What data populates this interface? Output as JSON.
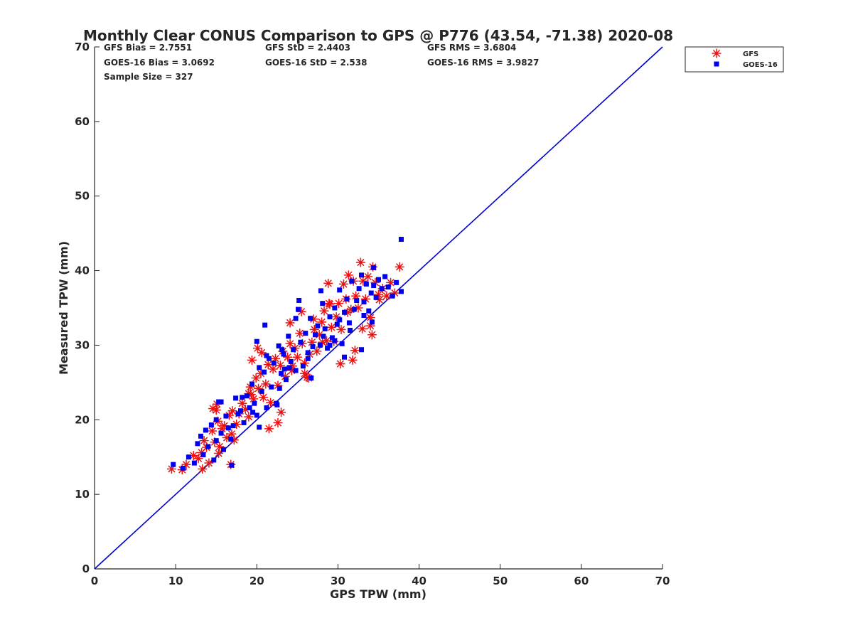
{
  "chart_data": {
    "type": "scatter",
    "title": "Monthly Clear CONUS Comparison to GPS @ P776 (43.54, -71.38) 2020-08",
    "xlabel": "GPS TPW (mm)",
    "ylabel": "Measured TPW (mm)",
    "xlim": [
      0,
      70
    ],
    "ylim": [
      0,
      70
    ],
    "xticks": [
      0,
      10,
      20,
      30,
      40,
      50,
      60,
      70
    ],
    "yticks": [
      0,
      10,
      20,
      30,
      40,
      50,
      60,
      70
    ],
    "grid": false,
    "legend_position": "outside top-right",
    "reference_line": {
      "name": "1:1 line",
      "x": [
        0,
        70
      ],
      "y": [
        0,
        70
      ],
      "color": "#0000cc"
    },
    "stats": [
      [
        "GFS Bias = 2.7551",
        "GFS StD = 2.4403",
        "GFS RMS = 3.6804"
      ],
      [
        "GOES-16 Bias = 3.0692",
        "GOES-16 StD = 2.538",
        "GOES-16 RMS = 3.9827"
      ],
      [
        "Sample Size = 327",
        "",
        ""
      ]
    ],
    "series": [
      {
        "name": "GFS",
        "marker": "asterisk",
        "color": "#ee1111",
        "x": [
          9.5,
          10.8,
          11.3,
          12.2,
          12.8,
          13.2,
          13.5,
          13.8,
          14.1,
          14.5,
          14.8,
          15.0,
          15.2,
          15.4,
          15.7,
          16.0,
          16.3,
          16.6,
          16.9,
          17.2,
          17.5,
          17.8,
          18.2,
          18.6,
          19.0,
          19.3,
          19.6,
          19.9,
          20.2,
          20.5,
          20.8,
          21.1,
          21.4,
          21.7,
          22.0,
          22.3,
          22.6,
          22.9,
          23.2,
          23.5,
          23.8,
          24.1,
          24.4,
          24.7,
          25.0,
          25.3,
          25.6,
          25.9,
          26.2,
          26.5,
          26.8,
          27.1,
          27.4,
          27.7,
          28.0,
          28.3,
          28.6,
          28.9,
          29.2,
          29.5,
          29.8,
          30.1,
          30.4,
          30.7,
          31.0,
          31.3,
          31.6,
          31.9,
          32.2,
          32.5,
          32.8,
          33.1,
          33.4,
          33.7,
          34.0,
          34.3,
          34.6,
          35.0,
          35.5,
          36.0,
          36.5,
          37.0,
          37.6,
          14.6,
          15.1,
          16.8,
          19.4,
          20.1,
          22.6,
          24.3,
          27.0,
          28.1,
          31.2,
          33.0,
          34.2,
          13.3,
          15.3,
          17.0,
          19.0,
          21.5,
          23.0,
          25.5,
          26.4,
          28.8,
          30.3,
          31.8,
          34.0,
          19.2,
          20.6,
          24.1,
          25.9,
          29.0,
          32.1,
          35.1
        ],
        "y": [
          13.4,
          13.3,
          14.0,
          15.2,
          14.8,
          15.6,
          17.2,
          16.3,
          14.2,
          18.5,
          17.0,
          21.3,
          19.8,
          16.4,
          18.8,
          19.2,
          17.6,
          20.6,
          18.1,
          17.3,
          19.4,
          20.8,
          22.2,
          21.4,
          20.4,
          23.4,
          22.8,
          25.6,
          24.2,
          26.2,
          23.0,
          24.8,
          27.4,
          22.3,
          26.8,
          28.2,
          24.6,
          27.3,
          29.2,
          25.8,
          28.4,
          30.2,
          27.2,
          29.6,
          28.4,
          31.6,
          30.2,
          27.6,
          25.7,
          28.8,
          30.4,
          32.1,
          29.2,
          31.4,
          33.1,
          34.6,
          30.6,
          35.6,
          32.4,
          30.5,
          33.8,
          35.6,
          32.1,
          38.2,
          36.2,
          39.4,
          34.8,
          38.6,
          36.6,
          35.0,
          41.1,
          38.6,
          36.2,
          39.2,
          32.6,
          40.5,
          38.4,
          36.8,
          37.6,
          36.6,
          38.4,
          37.0,
          40.5,
          21.5,
          22.1,
          14.0,
          28.0,
          29.6,
          19.6,
          26.6,
          33.5,
          30.4,
          34.4,
          32.2,
          31.4,
          13.4,
          15.5,
          21.2,
          23.5,
          18.8,
          21.0,
          34.5,
          25.6,
          38.3,
          27.5,
          28.0,
          33.7,
          24.4,
          29.0,
          33.0,
          26.2,
          35.5,
          29.3,
          36.1
        ]
      },
      {
        "name": "GOES-16",
        "marker": "square",
        "color": "#0000ee",
        "x": [
          9.7,
          10.9,
          11.6,
          12.3,
          12.7,
          13.1,
          13.4,
          13.7,
          14.0,
          14.4,
          14.7,
          15.0,
          15.3,
          15.6,
          15.9,
          16.2,
          16.5,
          16.8,
          17.1,
          17.4,
          17.7,
          18.0,
          18.4,
          18.8,
          19.1,
          19.4,
          19.7,
          20.0,
          20.3,
          20.6,
          20.9,
          21.2,
          21.5,
          21.8,
          22.1,
          22.4,
          22.7,
          23.0,
          23.3,
          23.6,
          23.9,
          24.2,
          24.5,
          24.8,
          25.1,
          25.4,
          25.7,
          26.0,
          26.3,
          26.6,
          26.9,
          27.2,
          27.5,
          27.8,
          28.1,
          28.4,
          28.7,
          29.0,
          29.3,
          29.6,
          29.9,
          30.2,
          30.5,
          30.8,
          31.1,
          31.4,
          31.7,
          32.0,
          32.3,
          32.6,
          32.9,
          33.2,
          33.5,
          33.8,
          34.1,
          34.4,
          34.7,
          35.0,
          35.4,
          35.8,
          36.2,
          36.7,
          37.2,
          37.8,
          15.0,
          15.6,
          16.9,
          20.0,
          21.0,
          22.5,
          23.1,
          24.8,
          25.2,
          27.9,
          29.0,
          30.2,
          31.5,
          32.9,
          34.2,
          19.5,
          21.2,
          22.8,
          24.0,
          26.3,
          28.2,
          30.8,
          33.2,
          18.2,
          20.3,
          23.4,
          26.7,
          29.6,
          34.4
        ],
        "y": [
          14.0,
          13.5,
          15.0,
          14.2,
          16.8,
          17.8,
          15.3,
          18.6,
          16.4,
          19.3,
          14.6,
          17.2,
          22.4,
          18.2,
          16.0,
          20.5,
          18.9,
          17.4,
          19.2,
          22.9,
          20.8,
          21.2,
          19.6,
          23.2,
          21.6,
          24.8,
          22.2,
          20.6,
          27.0,
          23.8,
          26.4,
          21.6,
          28.2,
          24.4,
          27.6,
          22.2,
          29.9,
          26.2,
          28.8,
          25.4,
          31.2,
          27.8,
          29.4,
          26.6,
          34.8,
          30.4,
          27.2,
          31.6,
          28.2,
          33.6,
          29.8,
          31.4,
          32.6,
          30.0,
          35.6,
          32.2,
          29.6,
          33.8,
          31.0,
          35.0,
          32.8,
          37.4,
          30.2,
          34.4,
          36.2,
          33.0,
          38.6,
          34.8,
          36.0,
          37.6,
          39.4,
          35.8,
          38.2,
          34.6,
          37.0,
          40.4,
          36.4,
          38.8,
          37.6,
          39.2,
          37.8,
          36.6,
          38.4,
          37.2,
          20.0,
          22.4,
          13.9,
          30.5,
          32.7,
          22.0,
          29.4,
          33.6,
          36.0,
          37.3,
          30.0,
          33.4,
          32.0,
          29.4,
          33.1,
          21.0,
          28.6,
          24.2,
          27.0,
          29.0,
          31.2,
          28.4,
          34.0,
          23.0,
          19.0,
          26.8,
          25.6,
          30.6,
          38.0
        ]
      }
    ],
    "extra_points": {
      "GOES-16": {
        "x": [
          37.8
        ],
        "y": [
          44.2
        ]
      }
    }
  }
}
